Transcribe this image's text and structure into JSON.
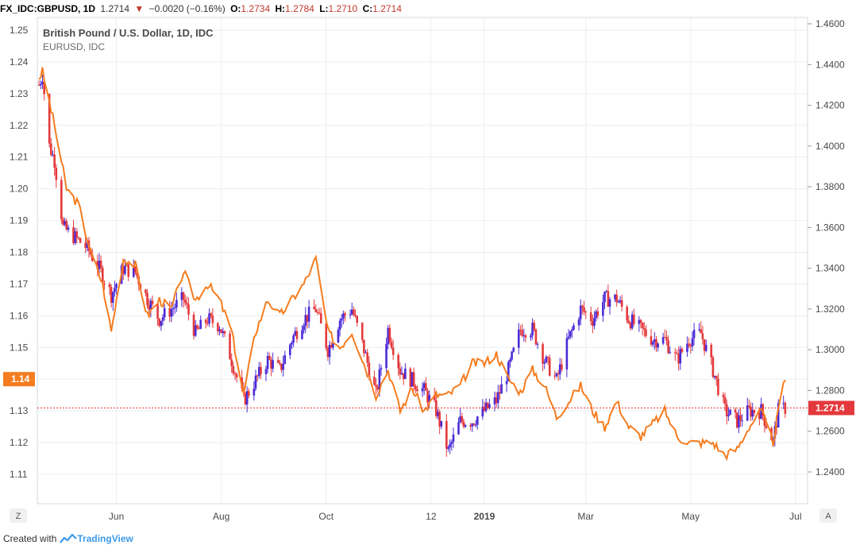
{
  "header": {
    "symbol": "FX_IDC:GBPUSD, 1D",
    "last": "1.2714",
    "arrow": "▼",
    "change": "−0.0020 (−0.16%)",
    "o_label": "O:",
    "o_val": "1.2734",
    "h_label": "H:",
    "h_val": "1.2784",
    "l_label": "L:",
    "l_val": "1.2710",
    "c_label": "C:",
    "c_val": "1.2714"
  },
  "legend": {
    "main": "British Pound / U.S. Dollar, 1D, IDC",
    "compare": "EURUSD, IDC"
  },
  "corner": {
    "left": "Z",
    "right": "A"
  },
  "footer": {
    "created_with": "Created with",
    "brand": "TradingView"
  },
  "colors": {
    "up": "#4b2bd6",
    "down": "#e4393c",
    "line": "#f57c1f",
    "grid": "#eceef2",
    "text": "#4a4a4a",
    "price_line": "#e4393c"
  },
  "chart_data": {
    "type": "candlestick",
    "left_axis": {
      "series": "EURUSD",
      "ylim": [
        1.1,
        1.25
      ],
      "ticks": [
        "1.25",
        "1.24",
        "1.23",
        "1.22",
        "1.21",
        "1.20",
        "1.19",
        "1.18",
        "1.17",
        "1.16",
        "1.15",
        "1.14",
        "1.13",
        "1.12",
        "1.11"
      ],
      "current_label": "1.14",
      "current_value": 1.14
    },
    "right_axis": {
      "series": "GBPUSD",
      "ylim": [
        1.235,
        1.46
      ],
      "ticks": [
        "1.4600",
        "1.4400",
        "1.4200",
        "1.4000",
        "1.3800",
        "1.3600",
        "1.3400",
        "1.3200",
        "1.3000",
        "1.2800",
        "1.2600",
        "1.2400"
      ],
      "current_label": "1.2714",
      "current_value": 1.2714
    },
    "x_ticks": [
      "Jun",
      "Aug",
      "Oct",
      "12",
      "2019",
      "Mar",
      "May",
      "Jul"
    ],
    "x_bold": [
      "2019"
    ],
    "gbpusd_path": [
      [
        "2018-04-17",
        1.43
      ],
      [
        "2018-04-19",
        1.435
      ],
      [
        "2018-04-23",
        1.4
      ],
      [
        "2018-04-26",
        1.393
      ],
      [
        "2018-05-01",
        1.36
      ],
      [
        "2018-05-08",
        1.355
      ],
      [
        "2018-05-15",
        1.35
      ],
      [
        "2018-05-22",
        1.34
      ],
      [
        "2018-05-29",
        1.327
      ],
      [
        "2018-06-05",
        1.34
      ],
      [
        "2018-06-12",
        1.338
      ],
      [
        "2018-06-19",
        1.325
      ],
      [
        "2018-06-26",
        1.315
      ],
      [
        "2018-07-03",
        1.32
      ],
      [
        "2018-07-10",
        1.325
      ],
      [
        "2018-07-17",
        1.308
      ],
      [
        "2018-07-24",
        1.315
      ],
      [
        "2018-07-31",
        1.312
      ],
      [
        "2018-08-07",
        1.295
      ],
      [
        "2018-08-14",
        1.275
      ],
      [
        "2018-08-21",
        1.285
      ],
      [
        "2018-08-28",
        1.295
      ],
      [
        "2018-09-04",
        1.29
      ],
      [
        "2018-09-11",
        1.305
      ],
      [
        "2018-09-18",
        1.315
      ],
      [
        "2018-09-25",
        1.32
      ],
      [
        "2018-10-02",
        1.3
      ],
      [
        "2018-10-09",
        1.315
      ],
      [
        "2018-10-16",
        1.32
      ],
      [
        "2018-10-23",
        1.3
      ],
      [
        "2018-10-30",
        1.278
      ],
      [
        "2018-11-06",
        1.31
      ],
      [
        "2018-11-13",
        1.29
      ],
      [
        "2018-11-20",
        1.285
      ],
      [
        "2018-11-27",
        1.28
      ],
      [
        "2018-12-04",
        1.27
      ],
      [
        "2018-12-11",
        1.25
      ],
      [
        "2018-12-18",
        1.265
      ],
      [
        "2018-12-25",
        1.265
      ],
      [
        "2019-01-01",
        1.27
      ],
      [
        "2019-01-08",
        1.275
      ],
      [
        "2019-01-15",
        1.29
      ],
      [
        "2019-01-22",
        1.31
      ],
      [
        "2019-01-29",
        1.31
      ],
      [
        "2019-02-05",
        1.295
      ],
      [
        "2019-02-12",
        1.285
      ],
      [
        "2019-02-19",
        1.305
      ],
      [
        "2019-02-26",
        1.32
      ],
      [
        "2019-03-05",
        1.315
      ],
      [
        "2019-03-12",
        1.325
      ],
      [
        "2019-03-19",
        1.325
      ],
      [
        "2019-03-26",
        1.315
      ],
      [
        "2019-04-02",
        1.31
      ],
      [
        "2019-04-09",
        1.305
      ],
      [
        "2019-04-16",
        1.305
      ],
      [
        "2019-04-23",
        1.295
      ],
      [
        "2019-04-30",
        1.305
      ],
      [
        "2019-05-07",
        1.308
      ],
      [
        "2019-05-14",
        1.29
      ],
      [
        "2019-05-21",
        1.27
      ],
      [
        "2019-05-28",
        1.265
      ],
      [
        "2019-06-04",
        1.27
      ],
      [
        "2019-06-11",
        1.27
      ],
      [
        "2019-06-18",
        1.255
      ],
      [
        "2019-06-21",
        1.27
      ],
      [
        "2019-06-25",
        1.2714
      ]
    ],
    "eurusd_path": [
      [
        "2018-04-17",
        1.235
      ],
      [
        "2018-04-19",
        1.237
      ],
      [
        "2018-04-26",
        1.22
      ],
      [
        "2018-05-03",
        1.2
      ],
      [
        "2018-05-10",
        1.195
      ],
      [
        "2018-05-17",
        1.18
      ],
      [
        "2018-05-24",
        1.17
      ],
      [
        "2018-05-29",
        1.155
      ],
      [
        "2018-06-05",
        1.178
      ],
      [
        "2018-06-12",
        1.176
      ],
      [
        "2018-06-19",
        1.16
      ],
      [
        "2018-06-26",
        1.165
      ],
      [
        "2018-07-03",
        1.162
      ],
      [
        "2018-07-10",
        1.174
      ],
      [
        "2018-07-17",
        1.165
      ],
      [
        "2018-07-24",
        1.17
      ],
      [
        "2018-07-31",
        1.165
      ],
      [
        "2018-08-07",
        1.155
      ],
      [
        "2018-08-14",
        1.135
      ],
      [
        "2018-08-21",
        1.155
      ],
      [
        "2018-08-28",
        1.165
      ],
      [
        "2018-09-04",
        1.16
      ],
      [
        "2018-09-11",
        1.165
      ],
      [
        "2018-09-18",
        1.17
      ],
      [
        "2018-09-25",
        1.178
      ],
      [
        "2018-10-02",
        1.155
      ],
      [
        "2018-10-09",
        1.15
      ],
      [
        "2018-10-16",
        1.155
      ],
      [
        "2018-10-23",
        1.145
      ],
      [
        "2018-10-30",
        1.135
      ],
      [
        "2018-11-06",
        1.143
      ],
      [
        "2018-11-13",
        1.13
      ],
      [
        "2018-11-20",
        1.137
      ],
      [
        "2018-11-27",
        1.13
      ],
      [
        "2018-12-04",
        1.135
      ],
      [
        "2018-12-11",
        1.135
      ],
      [
        "2018-12-18",
        1.138
      ],
      [
        "2018-12-25",
        1.145
      ],
      [
        "2019-01-01",
        1.145
      ],
      [
        "2019-01-08",
        1.148
      ],
      [
        "2019-01-15",
        1.14
      ],
      [
        "2019-01-22",
        1.136
      ],
      [
        "2019-01-29",
        1.143
      ],
      [
        "2019-02-05",
        1.138
      ],
      [
        "2019-02-12",
        1.128
      ],
      [
        "2019-02-19",
        1.133
      ],
      [
        "2019-02-26",
        1.138
      ],
      [
        "2019-03-05",
        1.13
      ],
      [
        "2019-03-12",
        1.125
      ],
      [
        "2019-03-19",
        1.133
      ],
      [
        "2019-03-26",
        1.125
      ],
      [
        "2019-04-02",
        1.122
      ],
      [
        "2019-04-09",
        1.126
      ],
      [
        "2019-04-16",
        1.13
      ],
      [
        "2019-04-23",
        1.122
      ],
      [
        "2019-04-30",
        1.12
      ],
      [
        "2019-05-07",
        1.12
      ],
      [
        "2019-05-14",
        1.12
      ],
      [
        "2019-05-21",
        1.116
      ],
      [
        "2019-05-28",
        1.118
      ],
      [
        "2019-06-04",
        1.125
      ],
      [
        "2019-06-11",
        1.13
      ],
      [
        "2019-06-18",
        1.12
      ],
      [
        "2019-06-21",
        1.13
      ],
      [
        "2019-06-25",
        1.14
      ]
    ]
  }
}
